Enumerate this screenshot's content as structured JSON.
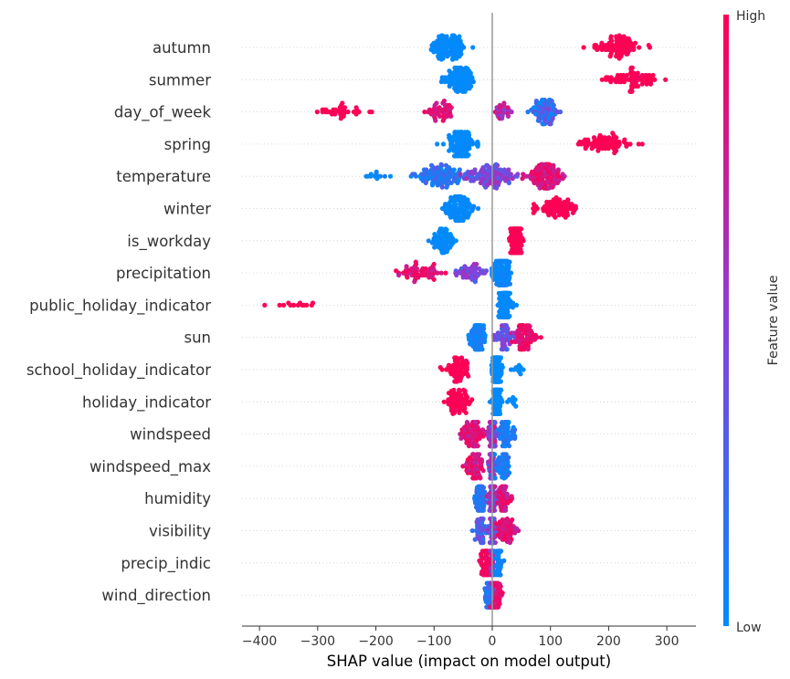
{
  "chart_data": {
    "type": "beeswarm",
    "xlabel": "SHAP value (impact on model output)",
    "xlim": [
      -430,
      350
    ],
    "xticks": [
      -400,
      -300,
      -200,
      -100,
      0,
      100,
      200,
      300
    ],
    "colorbar": {
      "label": "Feature value",
      "high_label": "High",
      "low_label": "Low",
      "low_color": "#008bfb",
      "mid_color": "#8a3fd8",
      "high_color": "#ff0052"
    },
    "features": [
      {
        "name": "autumn",
        "clusters": [
          {
            "center": -75,
            "spread": 30,
            "n": 110,
            "fv": 0.0,
            "jitter": 0.05
          },
          {
            "center": 215,
            "spread": 45,
            "n": 90,
            "fv": 1.0,
            "jitter": 0.05
          }
        ]
      },
      {
        "name": "summer",
        "clusters": [
          {
            "center": -55,
            "spread": 25,
            "n": 100,
            "fv": 0.0,
            "jitter": 0.05
          },
          {
            "center": 245,
            "spread": 40,
            "n": 80,
            "fv": 1.0,
            "jitter": 0.05
          }
        ]
      },
      {
        "name": "day_of_week",
        "clusters": [
          {
            "center": -260,
            "spread": 45,
            "n": 40,
            "fv": 1.0,
            "jitter": 0.05
          },
          {
            "center": -90,
            "spread": 25,
            "n": 45,
            "fv": 0.85,
            "jitter": 0.1
          },
          {
            "center": 10,
            "spread": 12,
            "n": 4,
            "fv": 0.8,
            "jitter": 0.1
          },
          {
            "center": 20,
            "spread": 15,
            "n": 25,
            "fv": 0.7,
            "jitter": 0.2
          },
          {
            "center": 90,
            "spread": 20,
            "n": 90,
            "fv": 0.2,
            "jitter": 0.3
          }
        ]
      },
      {
        "name": "spring",
        "clusters": [
          {
            "center": -55,
            "spread": 28,
            "n": 110,
            "fv": 0.0,
            "jitter": 0.05
          },
          {
            "center": 190,
            "spread": 45,
            "n": 80,
            "fv": 1.0,
            "jitter": 0.05
          }
        ]
      },
      {
        "name": "temperature",
        "clusters": [
          {
            "center": -200,
            "spread": 25,
            "n": 12,
            "fv": 0.02,
            "jitter": 0.05
          },
          {
            "center": -90,
            "spread": 45,
            "n": 110,
            "fv": 0.15,
            "jitter": 0.15
          },
          {
            "center": 0,
            "spread": 40,
            "n": 110,
            "fv": 0.45,
            "jitter": 0.2
          },
          {
            "center": 90,
            "spread": 30,
            "n": 120,
            "fv": 0.85,
            "jitter": 0.15
          }
        ]
      },
      {
        "name": "winter",
        "clusters": [
          {
            "center": -55,
            "spread": 25,
            "n": 110,
            "fv": 0.0,
            "jitter": 0.05
          },
          {
            "center": 110,
            "spread": 40,
            "n": 80,
            "fv": 1.0,
            "jitter": 0.05
          }
        ]
      },
      {
        "name": "is_workday",
        "clusters": [
          {
            "center": -85,
            "spread": 22,
            "n": 70,
            "fv": 0.0,
            "jitter": 0.05
          },
          {
            "center": 42,
            "spread": 12,
            "n": 120,
            "fv": 1.0,
            "jitter": 0.05
          }
        ]
      },
      {
        "name": "precipitation",
        "clusters": [
          {
            "center": -120,
            "spread": 40,
            "n": 60,
            "fv": 0.85,
            "jitter": 0.15
          },
          {
            "center": -40,
            "spread": 25,
            "n": 50,
            "fv": 0.45,
            "jitter": 0.2
          },
          {
            "center": 15,
            "spread": 15,
            "n": 110,
            "fv": 0.03,
            "jitter": 0.05
          }
        ]
      },
      {
        "name": "public_holiday_indicator",
        "clusters": [
          {
            "center": -330,
            "spread": 50,
            "n": 14,
            "fv": 1.0,
            "jitter": 0.02
          },
          {
            "center": 22,
            "spread": 10,
            "n": 120,
            "fv": 0.0,
            "jitter": 0.03
          }
        ]
      },
      {
        "name": "sun",
        "clusters": [
          {
            "center": -25,
            "spread": 15,
            "n": 90,
            "fv": 0.05,
            "jitter": 0.1
          },
          {
            "center": 20,
            "spread": 15,
            "n": 60,
            "fv": 0.4,
            "jitter": 0.2
          },
          {
            "center": 55,
            "spread": 20,
            "n": 80,
            "fv": 0.9,
            "jitter": 0.1
          }
        ]
      },
      {
        "name": "school_holiday_indicator",
        "clusters": [
          {
            "center": -60,
            "spread": 22,
            "n": 70,
            "fv": 1.0,
            "jitter": 0.05
          },
          {
            "center": 8,
            "spread": 8,
            "n": 120,
            "fv": 0.0,
            "jitter": 0.03
          },
          {
            "center": 45,
            "spread": 15,
            "n": 10,
            "fv": 0.0,
            "jitter": 0.03
          }
        ]
      },
      {
        "name": "holiday_indicator",
        "clusters": [
          {
            "center": -60,
            "spread": 20,
            "n": 70,
            "fv": 1.0,
            "jitter": 0.05
          },
          {
            "center": 8,
            "spread": 8,
            "n": 110,
            "fv": 0.0,
            "jitter": 0.03
          },
          {
            "center": 35,
            "spread": 10,
            "n": 8,
            "fv": 0.0,
            "jitter": 0.03
          }
        ]
      },
      {
        "name": "windspeed",
        "clusters": [
          {
            "center": -35,
            "spread": 20,
            "n": 80,
            "fv": 0.85,
            "jitter": 0.15
          },
          {
            "center": 0,
            "spread": 8,
            "n": 80,
            "fv": 0.5,
            "jitter": 0.3
          },
          {
            "center": 25,
            "spread": 14,
            "n": 60,
            "fv": 0.1,
            "jitter": 0.1
          }
        ]
      },
      {
        "name": "windspeed_max",
        "clusters": [
          {
            "center": -30,
            "spread": 15,
            "n": 70,
            "fv": 0.85,
            "jitter": 0.15
          },
          {
            "center": 0,
            "spread": 6,
            "n": 80,
            "fv": 0.5,
            "jitter": 0.3
          },
          {
            "center": 20,
            "spread": 12,
            "n": 50,
            "fv": 0.1,
            "jitter": 0.1
          }
        ]
      },
      {
        "name": "humidity",
        "clusters": [
          {
            "center": -20,
            "spread": 12,
            "n": 60,
            "fv": 0.15,
            "jitter": 0.1
          },
          {
            "center": 0,
            "spread": 6,
            "n": 80,
            "fv": 0.5,
            "jitter": 0.3
          },
          {
            "center": 20,
            "spread": 12,
            "n": 60,
            "fv": 0.85,
            "jitter": 0.15
          }
        ]
      },
      {
        "name": "visibility",
        "clusters": [
          {
            "center": -20,
            "spread": 10,
            "n": 50,
            "fv": 0.3,
            "jitter": 0.2
          },
          {
            "center": 0,
            "spread": 6,
            "n": 80,
            "fv": 0.5,
            "jitter": 0.3
          },
          {
            "center": 25,
            "spread": 14,
            "n": 60,
            "fv": 0.85,
            "jitter": 0.15
          }
        ]
      },
      {
        "name": "precip_indic",
        "clusters": [
          {
            "center": -12,
            "spread": 8,
            "n": 60,
            "fv": 0.95,
            "jitter": 0.05
          },
          {
            "center": 0,
            "spread": 3,
            "n": 50,
            "fv": 0.5,
            "jitter": 0.3
          },
          {
            "center": 12,
            "spread": 8,
            "n": 40,
            "fv": 0.05,
            "jitter": 0.05
          }
        ]
      },
      {
        "name": "wind_direction",
        "clusters": [
          {
            "center": -5,
            "spread": 7,
            "n": 60,
            "fv": 0.15,
            "jitter": 0.1
          },
          {
            "center": 0,
            "spread": 3,
            "n": 60,
            "fv": 0.6,
            "jitter": 0.3
          },
          {
            "center": 8,
            "spread": 8,
            "n": 50,
            "fv": 0.9,
            "jitter": 0.1
          }
        ]
      }
    ]
  }
}
